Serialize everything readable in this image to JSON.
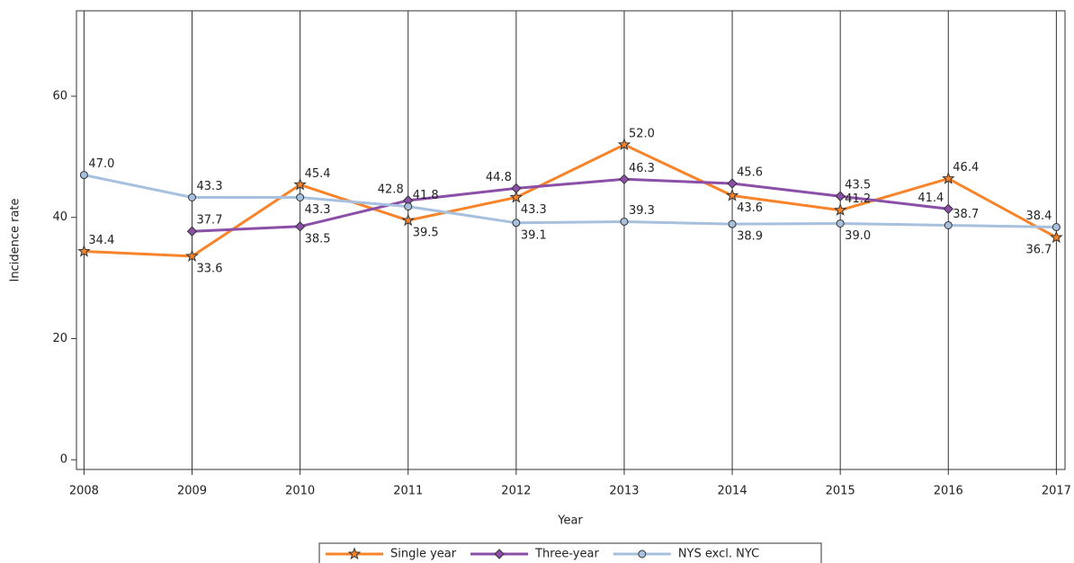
{
  "chart_data": {
    "type": "line",
    "x": [
      2008,
      2009,
      2010,
      2011,
      2012,
      2013,
      2014,
      2015,
      2016,
      2017
    ],
    "xlim": [
      2007.93,
      2017.08
    ],
    "xticks": [
      2008,
      2009,
      2010,
      2011,
      2012,
      2013,
      2014,
      2015,
      2016,
      2017
    ],
    "ylim": [
      -1.6,
      74.1
    ],
    "yticks": [
      0,
      20,
      40,
      60
    ],
    "xlabel": "Year",
    "ylabel": "Incidence rate",
    "grid": "x",
    "series": [
      {
        "name": "Single year",
        "color": "#f7832b",
        "marker": "star",
        "values": [
          34.4,
          33.6,
          45.4,
          39.5,
          43.3,
          52.0,
          43.6,
          41.2,
          46.4,
          36.7
        ],
        "value_labels": [
          "34.4",
          "33.6",
          "45.4",
          "39.5",
          "43.3",
          "52.0",
          "43.6",
          "41.2",
          "46.4",
          "36.7"
        ]
      },
      {
        "name": "Three-year",
        "color": "#8b4fa8",
        "marker": "diamond",
        "values": [
          null,
          37.7,
          38.5,
          42.8,
          44.8,
          46.3,
          45.6,
          43.5,
          41.4,
          null
        ],
        "value_labels": [
          null,
          "37.7",
          "38.5",
          "42.8",
          "44.8",
          "46.3",
          "45.6",
          "43.5",
          "41.4",
          null
        ]
      },
      {
        "name": "NYS excl. NYC",
        "color": "#a6c0de",
        "marker": "circle",
        "values": [
          47.0,
          43.3,
          43.3,
          41.8,
          39.1,
          39.3,
          38.9,
          39.0,
          38.7,
          38.4
        ],
        "value_labels": [
          "47.0",
          "43.3",
          "43.3",
          "41.8",
          "39.1",
          "39.3",
          "38.9",
          "39.0",
          "38.7",
          "38.4"
        ]
      }
    ]
  }
}
